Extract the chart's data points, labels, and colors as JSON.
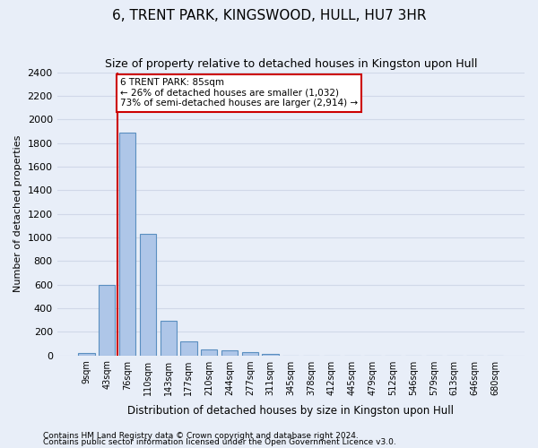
{
  "title": "6, TRENT PARK, KINGSWOOD, HULL, HU7 3HR",
  "subtitle": "Size of property relative to detached houses in Kingston upon Hull",
  "xlabel": "Distribution of detached houses by size in Kingston upon Hull",
  "ylabel": "Number of detached properties",
  "footnote1": "Contains HM Land Registry data © Crown copyright and database right 2024.",
  "footnote2": "Contains public sector information licensed under the Open Government Licence v3.0.",
  "bin_labels": [
    "9sqm",
    "43sqm",
    "76sqm",
    "110sqm",
    "143sqm",
    "177sqm",
    "210sqm",
    "244sqm",
    "277sqm",
    "311sqm",
    "345sqm",
    "378sqm",
    "412sqm",
    "445sqm",
    "479sqm",
    "512sqm",
    "546sqm",
    "579sqm",
    "613sqm",
    "646sqm",
    "680sqm"
  ],
  "bar_values": [
    20,
    600,
    1890,
    1030,
    290,
    120,
    50,
    45,
    30,
    15,
    0,
    0,
    0,
    0,
    0,
    0,
    0,
    0,
    0,
    0,
    0
  ],
  "bar_color": "#aec6e8",
  "bar_edge_color": "#5a8fc0",
  "grid_color": "#d0d8e8",
  "background_color": "#e8eef8",
  "vline_x": 2,
  "vline_color": "#cc0000",
  "annotation_text": "6 TRENT PARK: 85sqm\n← 26% of detached houses are smaller (1,032)\n73% of semi-detached houses are larger (2,914) →",
  "annotation_box_color": "#cc0000",
  "ylim": [
    0,
    2400
  ],
  "yticks": [
    0,
    200,
    400,
    600,
    800,
    1000,
    1200,
    1400,
    1600,
    1800,
    2000,
    2200,
    2400
  ]
}
